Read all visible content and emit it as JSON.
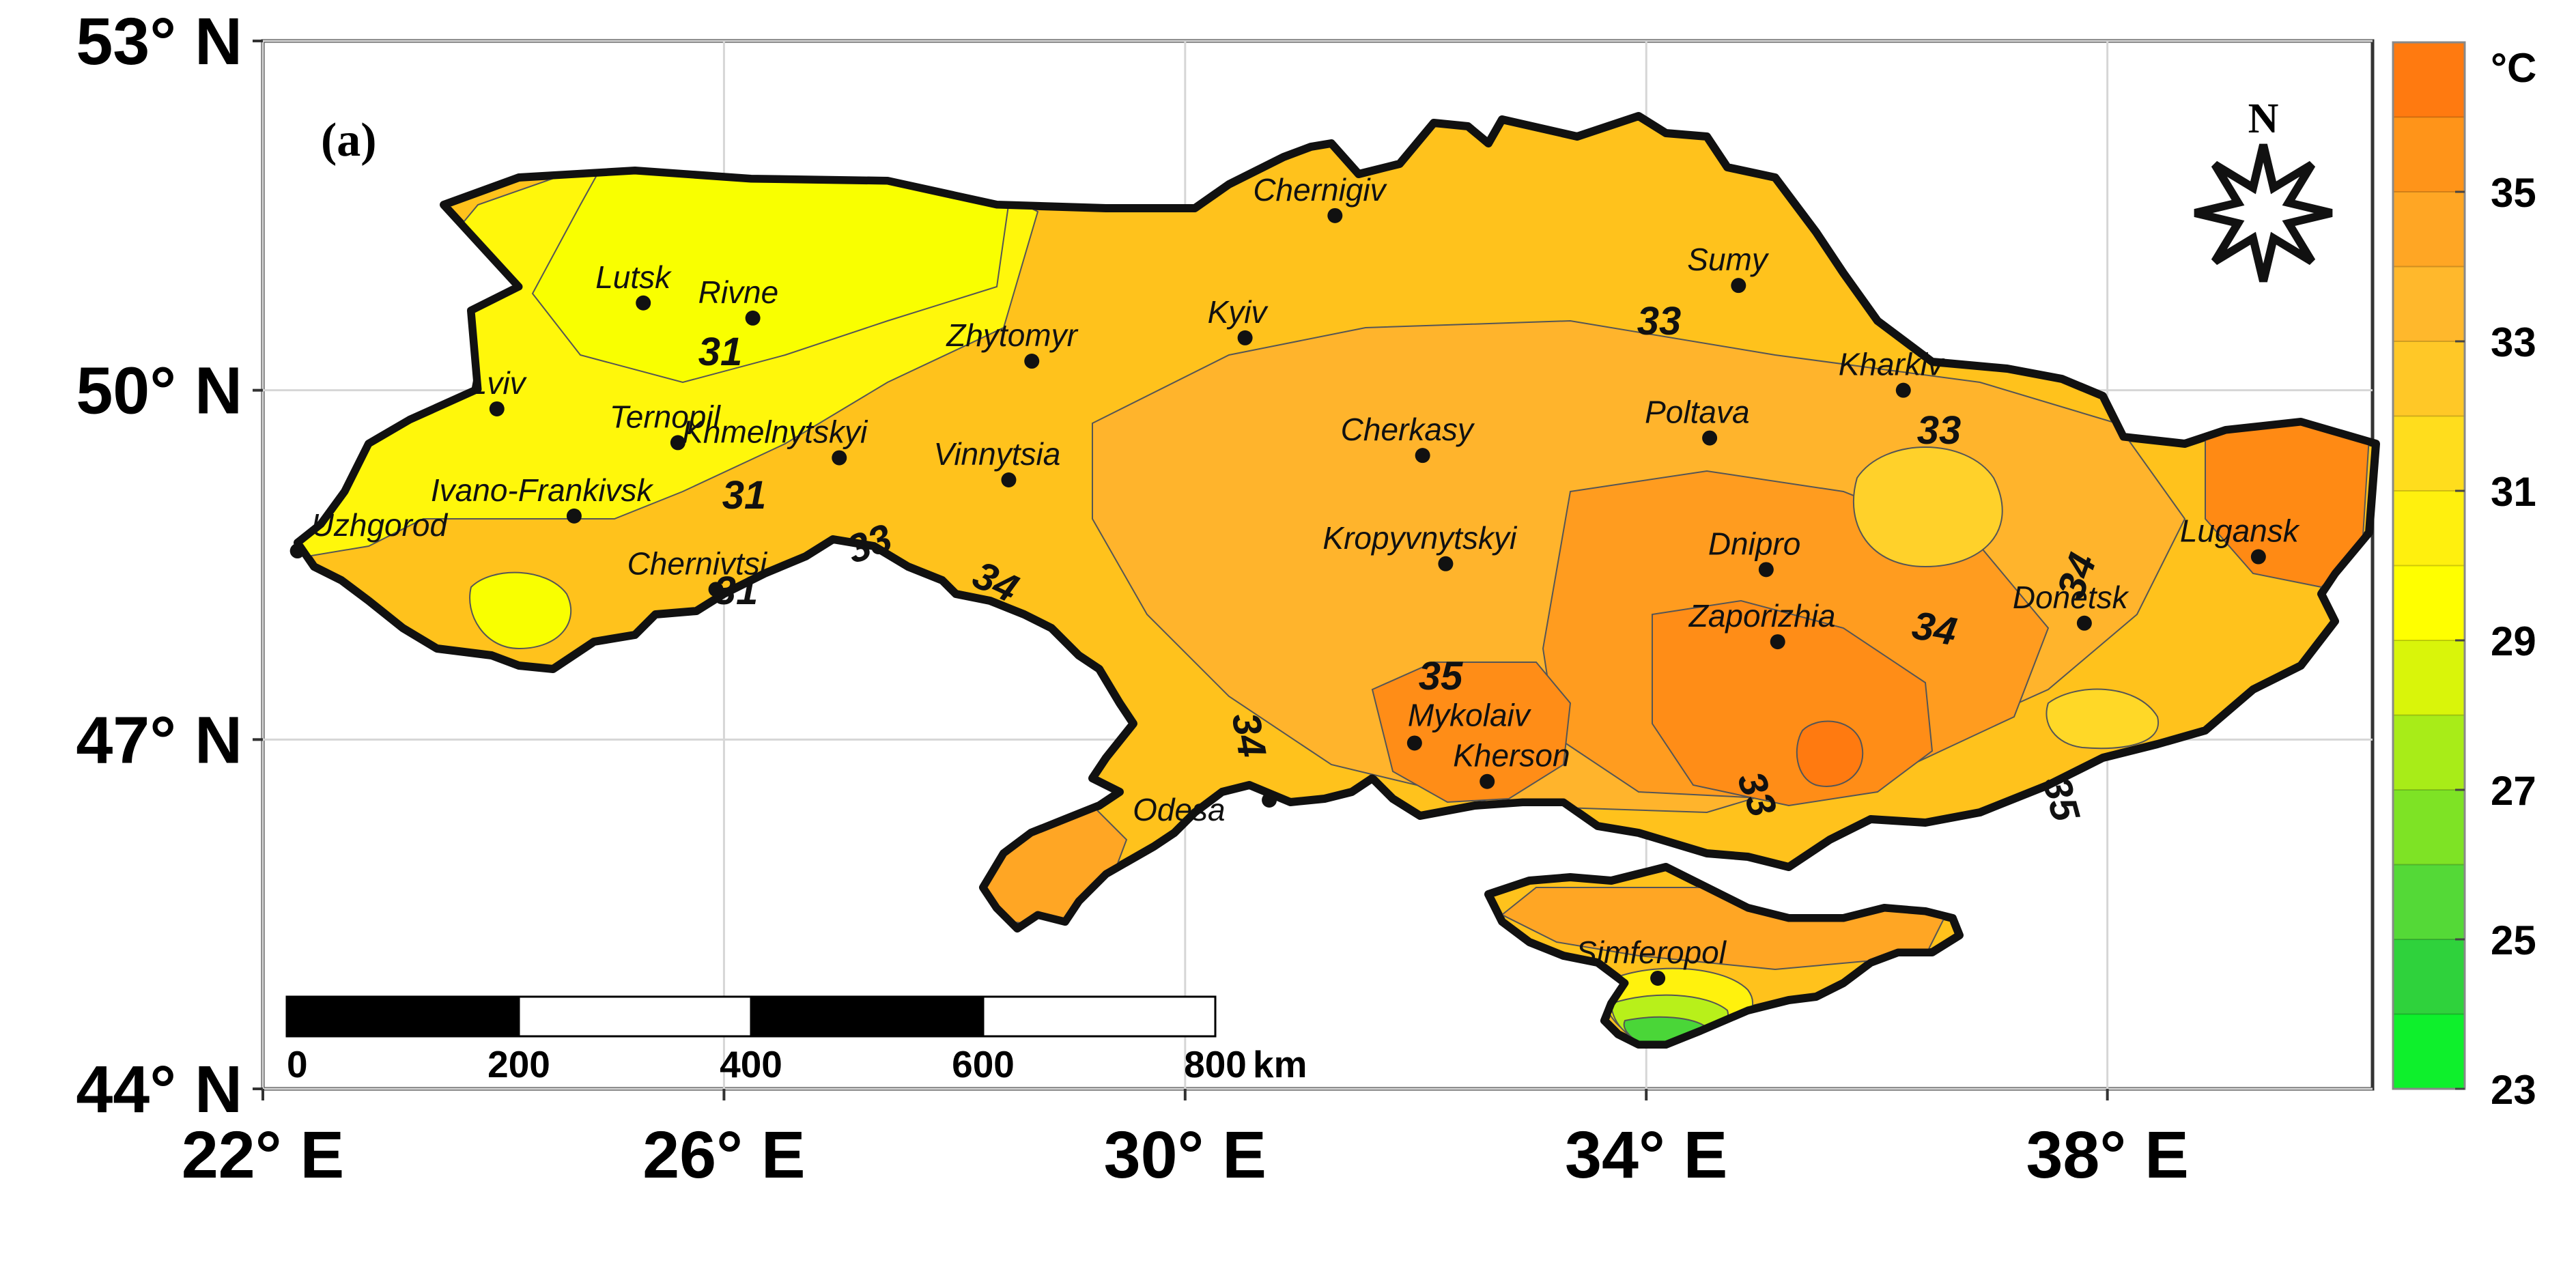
{
  "panel_label": "(a)",
  "latitude_labels": [
    "53° N",
    "50° N",
    "47° N",
    "44° N"
  ],
  "longitude_labels": [
    "22° E",
    "26° E",
    "30° E",
    "34° E",
    "38° E"
  ],
  "colorbar": {
    "unit": "°C",
    "tick_labels": [
      "35",
      "33",
      "31",
      "29",
      "27",
      "25",
      "23"
    ],
    "range": [
      23,
      37
    ],
    "colors": [
      "#ff7a10",
      "#ff9419",
      "#ffa624",
      "#ffb82c",
      "#ffc827",
      "#ffdd1d",
      "#fff00e",
      "#ffff00",
      "#d9f50a",
      "#a8ec18",
      "#7ee325",
      "#54d937",
      "#2fd23c",
      "#0ef02c"
    ]
  },
  "contour_labels": [
    "31",
    "31",
    "31",
    "33",
    "33",
    "33",
    "33",
    "34",
    "34",
    "34",
    "34",
    "35",
    "35"
  ],
  "cities": [
    {
      "name": "Lutsk",
      "lon": 25.3,
      "lat": 50.75
    },
    {
      "name": "Rivne",
      "lon": 26.25,
      "lat": 50.62
    },
    {
      "name": "Lviv",
      "lon": 24.03,
      "lat": 49.84
    },
    {
      "name": "Ternopil",
      "lon": 25.6,
      "lat": 49.55
    },
    {
      "name": "Khmelnytskyi",
      "lon": 27.0,
      "lat": 49.42
    },
    {
      "name": "Ivano-Frankivsk",
      "lon": 24.7,
      "lat": 48.92
    },
    {
      "name": "Uzhgorod",
      "lon": 22.3,
      "lat": 48.62
    },
    {
      "name": "Chernivtsi",
      "lon": 25.93,
      "lat": 48.29
    },
    {
      "name": "Zhytomyr",
      "lon": 28.67,
      "lat": 50.25
    },
    {
      "name": "Vinnytsia",
      "lon": 28.47,
      "lat": 49.23
    },
    {
      "name": "Kyiv",
      "lon": 30.52,
      "lat": 50.45
    },
    {
      "name": "Chernigiv",
      "lon": 31.3,
      "lat": 51.5
    },
    {
      "name": "Sumy",
      "lon": 34.8,
      "lat": 50.9
    },
    {
      "name": "Kharkiv",
      "lon": 36.23,
      "lat": 50.0
    },
    {
      "name": "Poltava",
      "lon": 34.55,
      "lat": 49.59
    },
    {
      "name": "Cherkasy",
      "lon": 32.06,
      "lat": 49.44
    },
    {
      "name": "Kropyvnytskyi",
      "lon": 32.26,
      "lat": 48.51
    },
    {
      "name": "Dnipro",
      "lon": 35.04,
      "lat": 48.46
    },
    {
      "name": "Zaporizhia",
      "lon": 35.14,
      "lat": 47.84
    },
    {
      "name": "Donetsk",
      "lon": 37.8,
      "lat": 48.0
    },
    {
      "name": "Lugansk",
      "lon": 39.31,
      "lat": 48.57
    },
    {
      "name": "Mykolaiv",
      "lon": 31.99,
      "lat": 46.97
    },
    {
      "name": "Kherson",
      "lon": 32.62,
      "lat": 46.64
    },
    {
      "name": "Odesa",
      "lon": 30.73,
      "lat": 46.48
    },
    {
      "name": "Simferopol",
      "lon": 34.1,
      "lat": 44.95
    }
  ],
  "scale_bar": {
    "tick_labels": [
      "0",
      "200",
      "400",
      "600",
      "800"
    ],
    "unit": "km"
  },
  "compass_label": "N"
}
